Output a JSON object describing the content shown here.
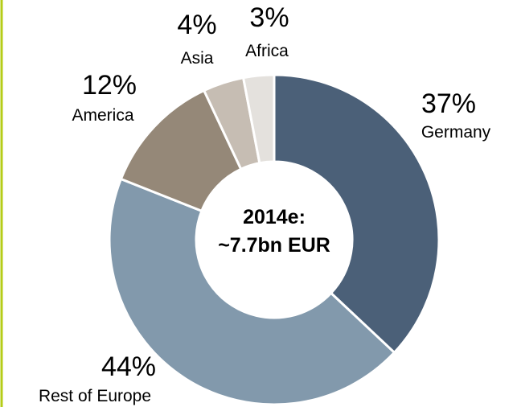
{
  "chart_data": {
    "type": "donut",
    "categories": [
      "Germany",
      "Rest of Europe",
      "America",
      "Asia",
      "Africa"
    ],
    "values": [
      37,
      44,
      12,
      4,
      3
    ],
    "value_labels": [
      "37%",
      "44%",
      "12%",
      "4%",
      "3%"
    ],
    "colors": [
      "#4b6078",
      "#8299ac",
      "#958878",
      "#c6bdb3",
      "#e4e1dd"
    ],
    "annotations": [
      "2014e:",
      "~7.7bn EUR"
    ]
  }
}
